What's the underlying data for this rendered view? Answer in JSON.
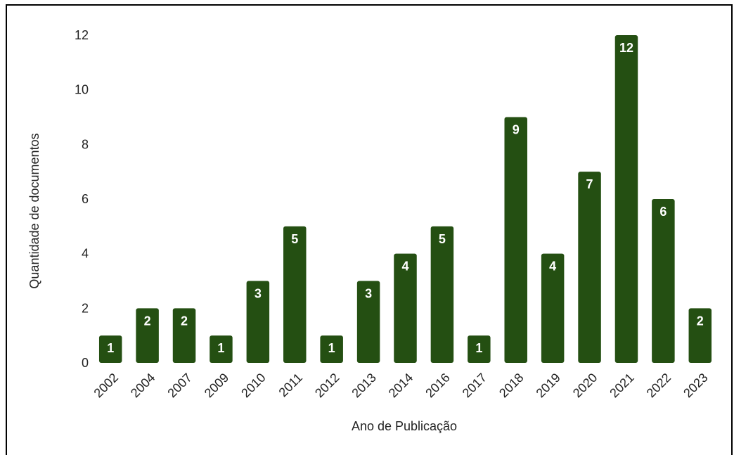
{
  "colors": {
    "bar": "#244f12",
    "label_text": "#ffffff",
    "axis_text": "#222222",
    "frame": "#000000"
  },
  "chart_data": {
    "type": "bar",
    "title": "",
    "xlabel": "Ano de Publicação",
    "ylabel": "Quantidade de  documentos",
    "categories": [
      "2002",
      "2004",
      "2007",
      "2009",
      "2010",
      "2011",
      "2012",
      "2013",
      "2014",
      "2016",
      "2017",
      "2018",
      "2019",
      "2020",
      "2021",
      "2022",
      "2023"
    ],
    "values": [
      1,
      2,
      2,
      1,
      3,
      5,
      1,
      3,
      4,
      5,
      1,
      9,
      4,
      7,
      12,
      6,
      2
    ],
    "ylim": [
      0,
      12
    ],
    "yticks": [
      "0",
      "2",
      "4",
      "6",
      "8",
      "10",
      "12"
    ],
    "grid": false,
    "legend": "none",
    "data_labels": true,
    "x_tick_rotation": "diagonal"
  }
}
